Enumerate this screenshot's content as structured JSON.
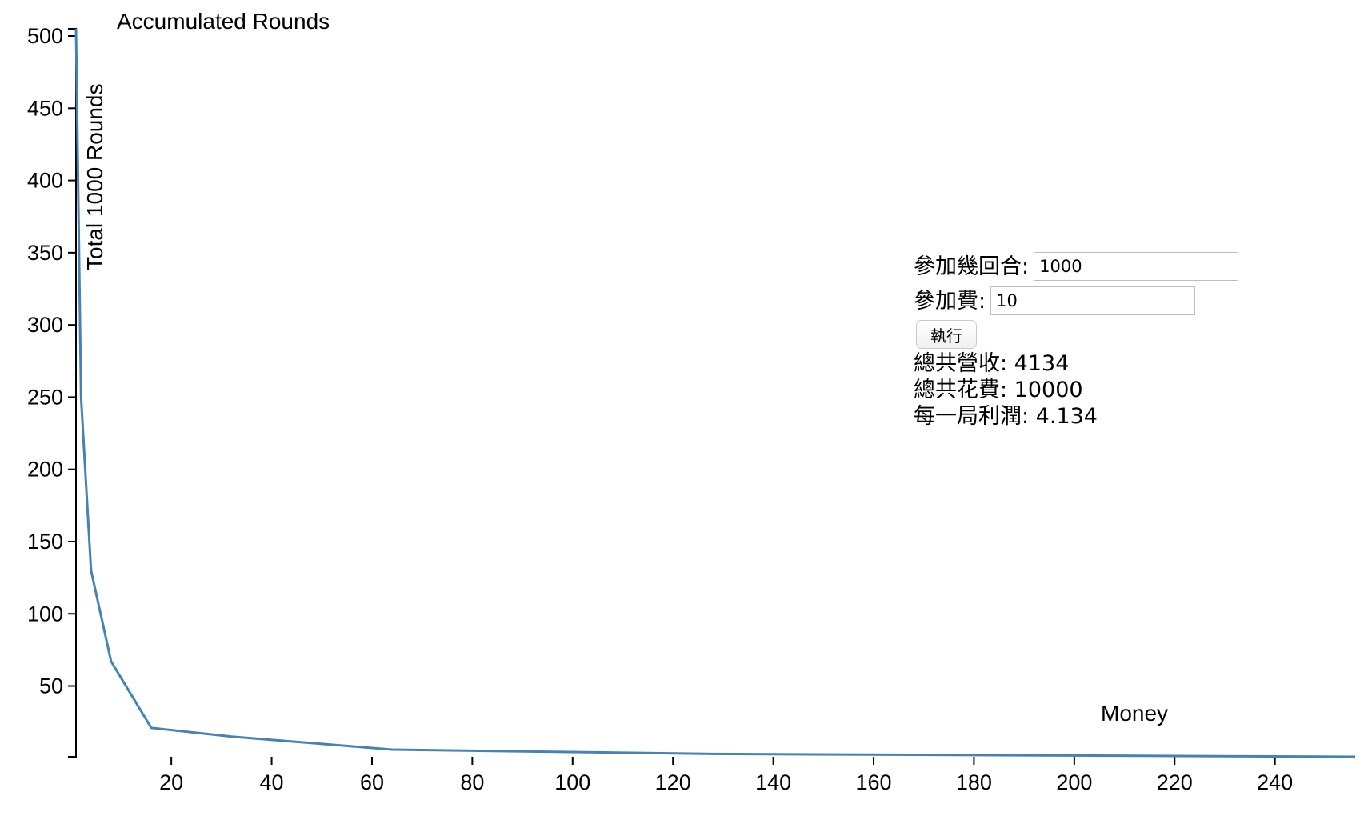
{
  "chart_data": {
    "type": "line",
    "title": "Accumulated Rounds",
    "xlabel": "Money",
    "ylabel": "Total 1000 Rounds",
    "xlim": [
      1,
      256
    ],
    "ylim": [
      1,
      505
    ],
    "x_ticks": [
      20,
      40,
      60,
      80,
      100,
      120,
      140,
      160,
      180,
      200,
      220,
      240
    ],
    "y_ticks": [
      50,
      100,
      150,
      200,
      250,
      300,
      350,
      400,
      450,
      500
    ],
    "grid": false,
    "series": [
      {
        "color": "#4682b4",
        "x": [
          1,
          2,
          4,
          8,
          16,
          32,
          64,
          128,
          256
        ],
        "y": [
          505,
          250,
          130,
          67,
          21,
          15,
          6,
          3,
          1
        ]
      }
    ]
  },
  "panel": {
    "rounds_label": "參加幾回合:",
    "rounds_value": "1000",
    "fee_label": "參加費:",
    "fee_value": "10",
    "run_label": "執行",
    "revenue_text": "總共營收: 4134",
    "cost_text": "總共花費: 10000",
    "profit_text": "每一局利潤: 4.134"
  }
}
